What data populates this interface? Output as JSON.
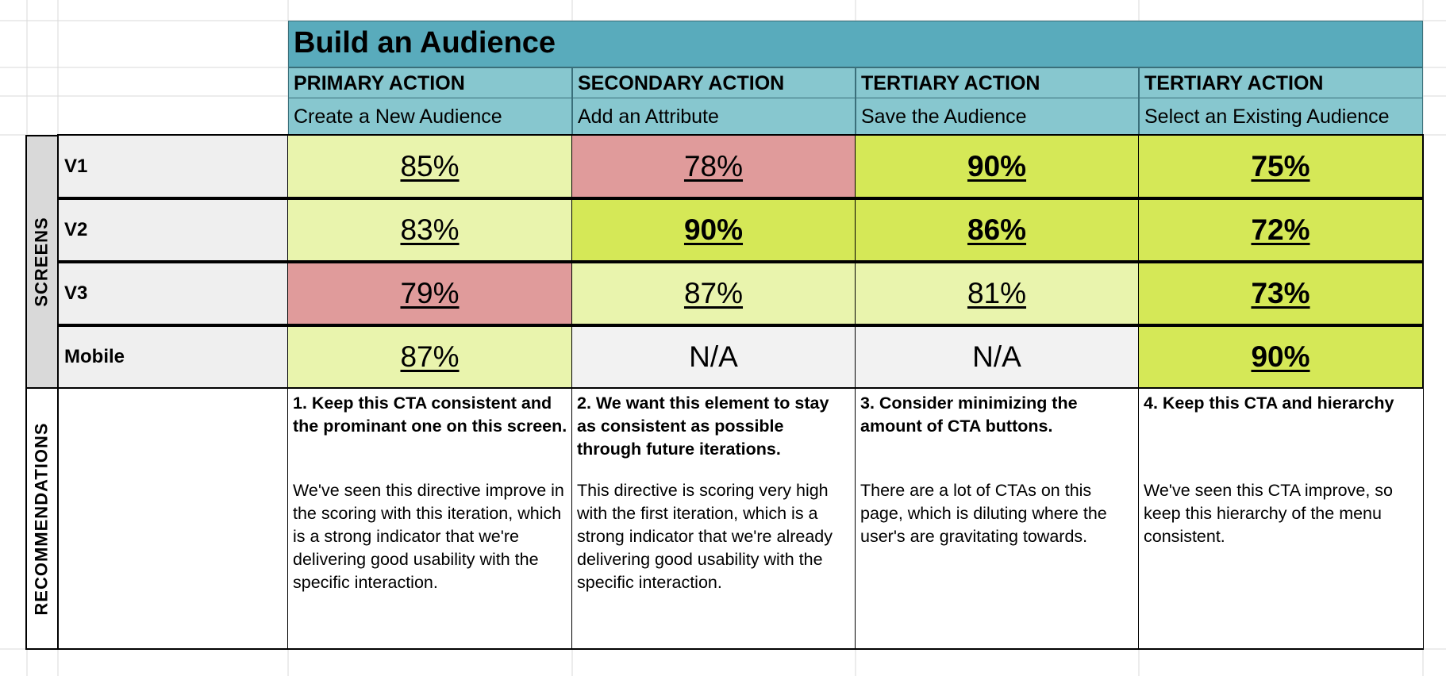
{
  "title": "Build an Audience",
  "side_labels": {
    "screens": "SCREENS",
    "recommendations": "RECOMMENDATIONS"
  },
  "actions": [
    {
      "type": "PRIMARY ACTION",
      "name": "Create a New Audience"
    },
    {
      "type": "SECONDARY ACTION",
      "name": "Add an Attribute"
    },
    {
      "type": "TERTIARY ACTION",
      "name": "Save the Audience"
    },
    {
      "type": "TERTIARY ACTION",
      "name": "Select an Existing Audience"
    }
  ],
  "rows": [
    {
      "label": "V1",
      "scores": [
        "85%",
        "78%",
        "90%",
        "75%"
      ]
    },
    {
      "label": "V2",
      "scores": [
        "83%",
        "90%",
        "86%",
        "72%"
      ]
    },
    {
      "label": "V3",
      "scores": [
        "79%",
        "87%",
        "81%",
        "73%"
      ]
    },
    {
      "label": "Mobile",
      "scores": [
        "87%",
        "N/A",
        "N/A",
        "90%"
      ]
    }
  ],
  "score_colors": {
    "light_green": "#e9f4ad",
    "strong_green": "#d5e857",
    "red": "#e09b9b",
    "grey": "#f2f2f2",
    "header_teal": "#87c7cf",
    "title_teal": "#59abbc"
  },
  "recommendations": [
    {
      "heading": "1. Keep this CTA consistent and the prominant one on this screen.",
      "body": "We've seen this directive improve in the scoring with this iteration, which is a strong indicator that we're delivering good usability with the specific interaction."
    },
    {
      "heading": "2. We want this element to stay as consistent as possible through future iterations.",
      "body": "This directive is scoring very high with the first iteration, which is a strong indicator that we're already delivering good usability with the specific interaction."
    },
    {
      "heading": "3. Consider minimizing the amount of CTA buttons.",
      "body": "There are a lot of CTAs on this page, which is diluting where the user's are gravitating towards."
    },
    {
      "heading": "4. Keep this CTA and hierarchy",
      "body": "We've seen this CTA improve, so keep this hierarchy of the menu consistent."
    }
  ]
}
